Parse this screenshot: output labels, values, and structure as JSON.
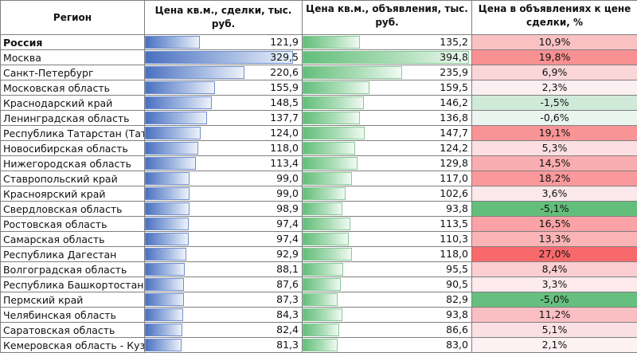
{
  "headers": {
    "region": "Регион",
    "deal_price": "Цена кв.м., сделки, тыс. руб.",
    "listing_price": "Цена кв.м., объявления, тыс. руб.",
    "premium": "Цена в объявлениях к цене сделки, %"
  },
  "colors": {
    "bar_blue": "#4a70c0",
    "bar_green": "#63be7b",
    "positive_max": "#f8696b",
    "negative_max": "#63be7b"
  },
  "rows": [
    {
      "region": "Россия",
      "deal": "121,9",
      "deal_value": 121.9,
      "listing": "135,2",
      "listing_value": 135.2,
      "pct": "10,9%",
      "pct_value": 10.9,
      "bold": true
    },
    {
      "region": "Москва",
      "deal": "329,5",
      "deal_value": 329.5,
      "listing": "394,8",
      "listing_value": 394.8,
      "pct": "19,8%",
      "pct_value": 19.8
    },
    {
      "region": "Санкт-Петербург",
      "deal": "220,6",
      "deal_value": 220.6,
      "listing": "235,9",
      "listing_value": 235.9,
      "pct": "6,9%",
      "pct_value": 6.9
    },
    {
      "region": "Московская область",
      "deal": "155,9",
      "deal_value": 155.9,
      "listing": "159,5",
      "listing_value": 159.5,
      "pct": "2,3%",
      "pct_value": 2.3
    },
    {
      "region": "Краснодарский край",
      "deal": "148,5",
      "deal_value": 148.5,
      "listing": "146,2",
      "listing_value": 146.2,
      "pct": "-1,5%",
      "pct_value": -1.5
    },
    {
      "region": "Ленинградская область",
      "deal": "137,7",
      "deal_value": 137.7,
      "listing": "136,8",
      "listing_value": 136.8,
      "pct": "-0,6%",
      "pct_value": -0.6
    },
    {
      "region": "Республика Татарстан (Татарстан)",
      "deal": "124,0",
      "deal_value": 124.0,
      "listing": "147,7",
      "listing_value": 147.7,
      "pct": "19,1%",
      "pct_value": 19.1
    },
    {
      "region": "Новосибирская область",
      "deal": "118,0",
      "deal_value": 118.0,
      "listing": "124,2",
      "listing_value": 124.2,
      "pct": "5,3%",
      "pct_value": 5.3
    },
    {
      "region": "Нижегородская область",
      "deal": "113,4",
      "deal_value": 113.4,
      "listing": "129,8",
      "listing_value": 129.8,
      "pct": "14,5%",
      "pct_value": 14.5
    },
    {
      "region": "Ставропольский край",
      "deal": "99,0",
      "deal_value": 99.0,
      "listing": "117,0",
      "listing_value": 117.0,
      "pct": "18,2%",
      "pct_value": 18.2
    },
    {
      "region": "Красноярский край",
      "deal": "99,0",
      "deal_value": 99.0,
      "listing": "102,6",
      "listing_value": 102.6,
      "pct": "3,6%",
      "pct_value": 3.6
    },
    {
      "region": "Свердловская область",
      "deal": "98,9",
      "deal_value": 98.9,
      "listing": "93,8",
      "listing_value": 93.8,
      "pct": "-5,1%",
      "pct_value": -5.1
    },
    {
      "region": "Ростовская область",
      "deal": "97,4",
      "deal_value": 97.4,
      "listing": "113,5",
      "listing_value": 113.5,
      "pct": "16,5%",
      "pct_value": 16.5
    },
    {
      "region": "Самарская область",
      "deal": "97,4",
      "deal_value": 97.4,
      "listing": "110,3",
      "listing_value": 110.3,
      "pct": "13,3%",
      "pct_value": 13.3
    },
    {
      "region": "Республика Дагестан",
      "deal": "92,9",
      "deal_value": 92.9,
      "listing": "118,0",
      "listing_value": 118.0,
      "pct": "27,0%",
      "pct_value": 27.0
    },
    {
      "region": "Волгоградская область",
      "deal": "88,1",
      "deal_value": 88.1,
      "listing": "95,5",
      "listing_value": 95.5,
      "pct": "8,4%",
      "pct_value": 8.4
    },
    {
      "region": "Республика Башкортостан",
      "deal": "87,6",
      "deal_value": 87.6,
      "listing": "90,5",
      "listing_value": 90.5,
      "pct": "3,3%",
      "pct_value": 3.3
    },
    {
      "region": "Пермский край",
      "deal": "87,3",
      "deal_value": 87.3,
      "listing": "82,9",
      "listing_value": 82.9,
      "pct": "-5,0%",
      "pct_value": -5.0
    },
    {
      "region": "Челябинская область",
      "deal": "84,3",
      "deal_value": 84.3,
      "listing": "93,8",
      "listing_value": 93.8,
      "pct": "11,2%",
      "pct_value": 11.2
    },
    {
      "region": "Саратовская область",
      "deal": "82,4",
      "deal_value": 82.4,
      "listing": "86,6",
      "listing_value": 86.6,
      "pct": "5,1%",
      "pct_value": 5.1
    },
    {
      "region": "Кемеровская область - Кузбасс",
      "deal": "81,3",
      "deal_value": 81.3,
      "listing": "83,0",
      "listing_value": 83.0,
      "pct": "2,1%",
      "pct_value": 2.1
    }
  ]
}
